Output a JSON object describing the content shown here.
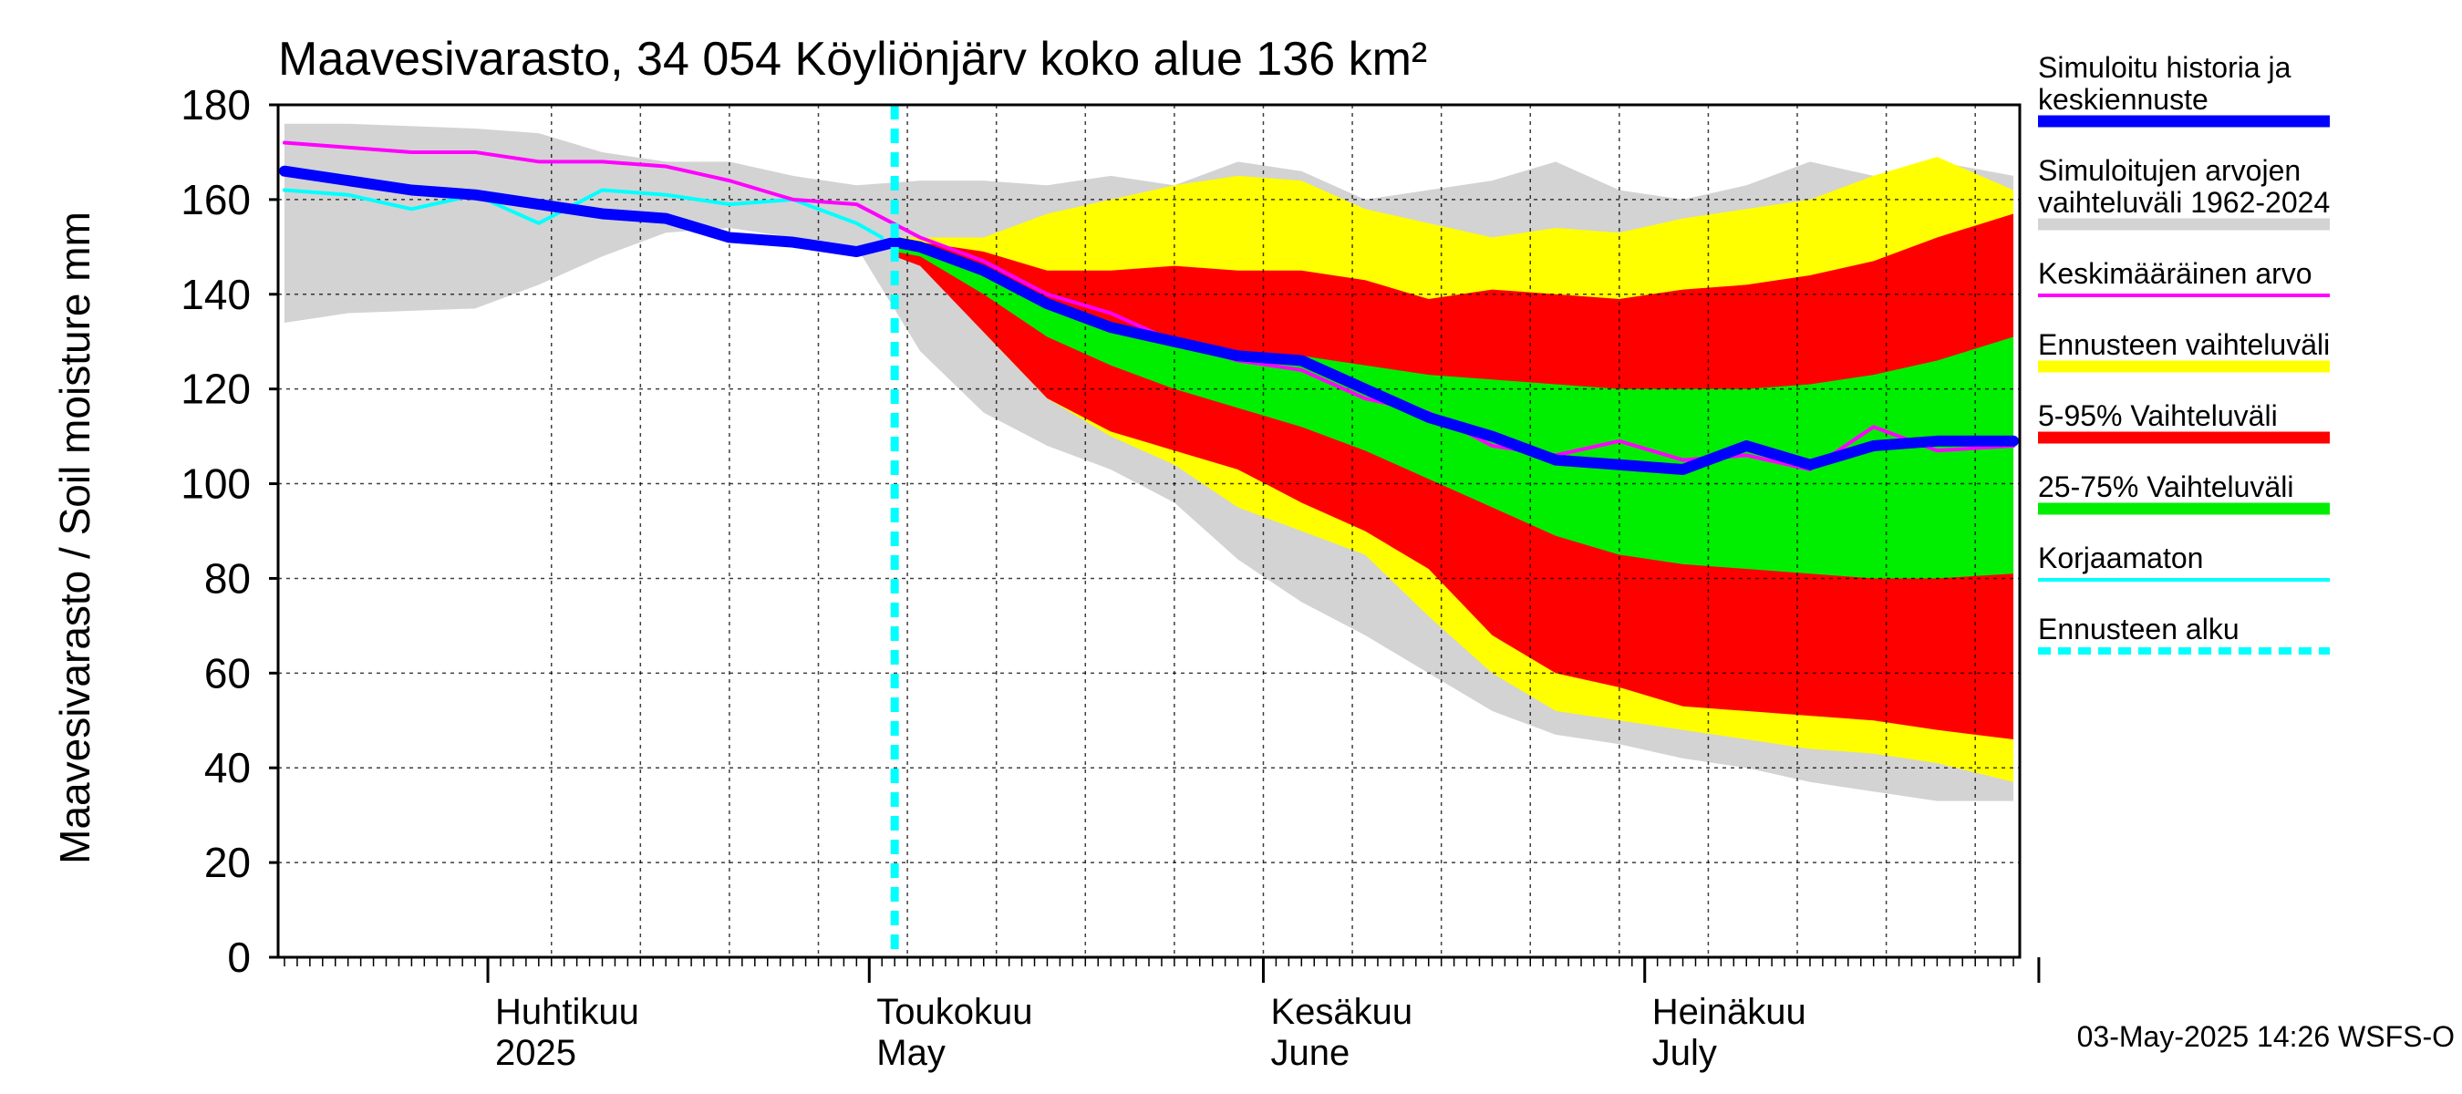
{
  "chart_data": {
    "type": "area",
    "title": "Maavesivarasto, 34 054 Köyliönjärv koko alue 136 km²",
    "ylabel": "Maavesivarasto / Soil moisture   mm",
    "ylim": [
      0,
      180
    ],
    "yticks": [
      0,
      20,
      40,
      60,
      80,
      100,
      120,
      140,
      160,
      180
    ],
    "x_domain": [
      -15.5,
      121.5
    ],
    "month_starts": [
      1,
      31,
      62,
      92,
      123
    ],
    "week_lines": [
      6,
      13,
      20,
      27,
      34,
      41,
      48,
      55,
      62,
      69,
      76,
      83,
      90,
      97,
      104,
      111,
      118
    ],
    "month_labels": [
      {
        "fi": "Huhtikuu",
        "en": "2025",
        "day": 1
      },
      {
        "fi": "Toukokuu",
        "en": "May",
        "day": 31
      },
      {
        "fi": "Kesäkuu",
        "en": "June",
        "day": 62
      },
      {
        "fi": "Heinäkuu",
        "en": "July",
        "day": 92
      }
    ],
    "forecast_start_day": 33,
    "colors": {
      "history": "#0000ff",
      "hist_range": "#d3d3d3",
      "mean": "#ff00ff",
      "fc_range": "#ffff00",
      "p5_95": "#ff0000",
      "p25_75": "#00ee00",
      "uncorrected": "#00ffff",
      "forecast_start": "#00ffff"
    },
    "series": {
      "hist_range": {
        "x": [
          -15,
          -10,
          0,
          5,
          10,
          15,
          20,
          25,
          30,
          35,
          40,
          45,
          50,
          55,
          60,
          65,
          70,
          75,
          80,
          85,
          90,
          95,
          100,
          105,
          110,
          115,
          121
        ],
        "upper": [
          176,
          176,
          175,
          174,
          170,
          168,
          168,
          165,
          163,
          164,
          164,
          163,
          165,
          163,
          168,
          166,
          160,
          162,
          164,
          168,
          162,
          160,
          163,
          168,
          165,
          168,
          165
        ],
        "lower": [
          134,
          136,
          137,
          142,
          148,
          153,
          154,
          152,
          150,
          128,
          115,
          108,
          103,
          96,
          84,
          75,
          68,
          60,
          52,
          47,
          45,
          42,
          40,
          37,
          35,
          33,
          33
        ]
      },
      "fc_range": {
        "x": [
          33,
          35,
          40,
          45,
          50,
          55,
          60,
          65,
          70,
          75,
          80,
          85,
          90,
          95,
          100,
          105,
          110,
          115,
          121
        ],
        "upper": [
          152,
          152,
          152,
          157,
          160,
          163,
          165,
          164,
          158,
          155,
          152,
          154,
          153,
          156,
          158,
          160,
          165,
          169,
          162
        ],
        "lower": [
          150,
          148,
          132,
          118,
          110,
          104,
          95,
          90,
          85,
          72,
          60,
          52,
          50,
          48,
          46,
          44,
          43,
          41,
          37
        ]
      },
      "p5_95": {
        "x": [
          33,
          35,
          40,
          45,
          50,
          55,
          60,
          65,
          70,
          75,
          80,
          85,
          90,
          95,
          100,
          105,
          110,
          115,
          121
        ],
        "upper": [
          151,
          151,
          149,
          145,
          145,
          146,
          145,
          145,
          143,
          139,
          141,
          140,
          139,
          141,
          142,
          144,
          147,
          152,
          157
        ],
        "lower": [
          148,
          146,
          132,
          118,
          111,
          107,
          103,
          96,
          90,
          82,
          68,
          60,
          57,
          53,
          52,
          51,
          50,
          48,
          46
        ]
      },
      "p25_75": {
        "x": [
          33,
          35,
          40,
          45,
          50,
          55,
          60,
          65,
          70,
          75,
          80,
          85,
          90,
          95,
          100,
          105,
          110,
          115,
          121
        ],
        "upper": [
          150,
          150,
          145,
          138,
          133,
          130,
          128,
          127,
          125,
          123,
          122,
          121,
          120,
          120,
          120,
          121,
          123,
          126,
          131
        ],
        "lower": [
          149,
          148,
          140,
          131,
          125,
          120,
          116,
          112,
          107,
          101,
          95,
          89,
          85,
          83,
          82,
          81,
          80,
          80,
          81
        ]
      },
      "mean": {
        "x": [
          -15,
          -10,
          -5,
          0,
          5,
          10,
          15,
          20,
          25,
          30,
          35,
          40,
          45,
          50,
          55,
          60,
          65,
          70,
          75,
          80,
          85,
          90,
          95,
          100,
          105,
          110,
          115,
          121
        ],
        "values": [
          172,
          171,
          170,
          170,
          168,
          168,
          167,
          164,
          160,
          159,
          152,
          147,
          140,
          136,
          130,
          126,
          124,
          118,
          115,
          108,
          106,
          109,
          105,
          106,
          103,
          112,
          107,
          108
        ]
      },
      "uncorrected": {
        "x": [
          -15,
          -10,
          -5,
          0,
          5,
          10,
          15,
          20,
          25,
          30,
          32
        ],
        "values": [
          162,
          161,
          158,
          161,
          155,
          162,
          161,
          159,
          160,
          155,
          152
        ]
      },
      "history": {
        "x": [
          -15,
          -10,
          -5,
          0,
          5,
          10,
          15,
          20,
          25,
          30,
          33,
          35,
          40,
          45,
          50,
          55,
          60,
          65,
          70,
          75,
          80,
          85,
          90,
          95,
          100,
          105,
          110,
          115,
          121
        ],
        "values": [
          166,
          164,
          162,
          161,
          159,
          157,
          156,
          152,
          151,
          149,
          151,
          150,
          145,
          138,
          133,
          130,
          127,
          126,
          120,
          114,
          110,
          105,
          104,
          103,
          108,
          104,
          108,
          109,
          109
        ]
      }
    },
    "legend": [
      {
        "label": "Simuloitu historia ja keskiennuste",
        "lines": [
          "Simuloitu historia ja",
          "keskiennuste"
        ],
        "key": "history",
        "style": "thick"
      },
      {
        "label": "Simuloitujen arvojen vaihteluväli 1962-2024",
        "lines": [
          "Simuloitujen arvojen",
          "vaihteluväli 1962-2024"
        ],
        "key": "hist_range",
        "style": "thick"
      },
      {
        "label": "Keskimääräinen arvo",
        "lines": [
          "Keskimääräinen arvo"
        ],
        "key": "mean",
        "style": "thin"
      },
      {
        "label": "Ennusteen vaihteluväli",
        "lines": [
          "Ennusteen vaihteluväli"
        ],
        "key": "fc_range",
        "style": "thick"
      },
      {
        "label": "5-95% Vaihteluväli",
        "lines": [
          "5-95% Vaihteluväli"
        ],
        "key": "p5_95",
        "style": "thick"
      },
      {
        "label": "25-75% Vaihteluväli",
        "lines": [
          "25-75% Vaihteluväli"
        ],
        "key": "p25_75",
        "style": "thick"
      },
      {
        "label": "Korjaamaton",
        "lines": [
          "Korjaamaton"
        ],
        "key": "uncorrected",
        "style": "thin"
      },
      {
        "label": "Ennusteen alku",
        "lines": [
          "Ennusteen alku"
        ],
        "key": "forecast_start",
        "style": "dashed"
      }
    ],
    "timestamp": "03-May-2025 14:26 WSFS-O"
  }
}
